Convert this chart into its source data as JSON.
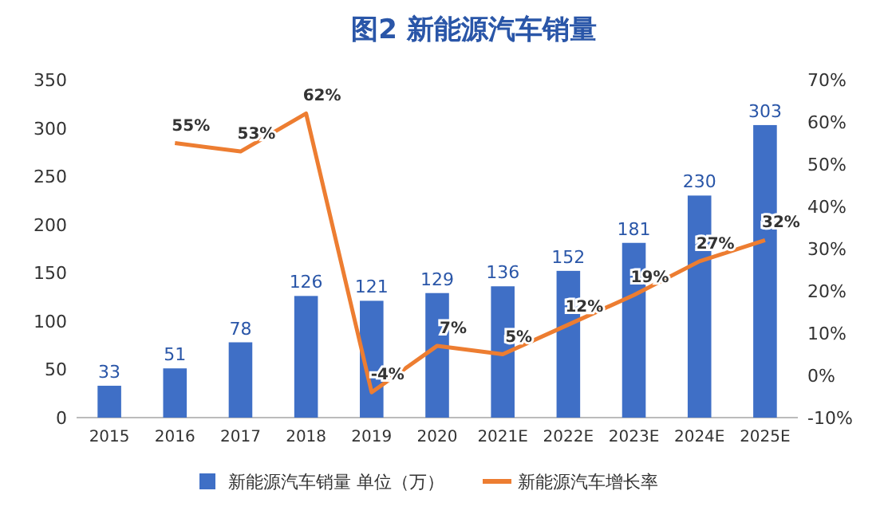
{
  "chart_data": {
    "type": "bar",
    "title": "图2 新能源汽车销量",
    "categories": [
      "2015",
      "2016",
      "2017",
      "2018",
      "2019",
      "2020",
      "2021E",
      "2022E",
      "2023E",
      "2024E",
      "2025E"
    ],
    "series": [
      {
        "name": "新能源汽车销量 单位（万）",
        "color": "#3f6fc6",
        "values": [
          33,
          51,
          78,
          126,
          121,
          129,
          136,
          152,
          181,
          230,
          303
        ],
        "value_labels": [
          "33",
          "51",
          "78",
          "126",
          "121",
          "129",
          "136",
          "152",
          "181",
          "230",
          "303"
        ]
      },
      {
        "name": "新能源汽车增长率",
        "type": "line",
        "axis": "y2",
        "color": "#ed7d31",
        "values": [
          null,
          55,
          53,
          62,
          -4,
          7,
          5,
          12,
          19,
          27,
          32
        ],
        "value_labels": [
          null,
          "55%",
          "53%",
          "62%",
          "-4%",
          "7%",
          "5%",
          "12%",
          "19%",
          "27%",
          "32%"
        ]
      }
    ],
    "ylim": [
      0,
      350
    ],
    "yticks": [
      0,
      50,
      100,
      150,
      200,
      250,
      300,
      350
    ],
    "y2lim": [
      -10,
      70
    ],
    "y2ticks": [
      {
        "value": -10,
        "label": "-10%"
      },
      {
        "value": 0,
        "label": "0%"
      },
      {
        "value": 10,
        "label": "10%"
      },
      {
        "value": 20,
        "label": "20%"
      },
      {
        "value": 30,
        "label": "30%"
      },
      {
        "value": 40,
        "label": "40%"
      },
      {
        "value": 50,
        "label": "50%"
      },
      {
        "value": 60,
        "label": "60%"
      },
      {
        "value": 70,
        "label": "70%"
      }
    ],
    "legend": "bottom",
    "marker": "none"
  }
}
